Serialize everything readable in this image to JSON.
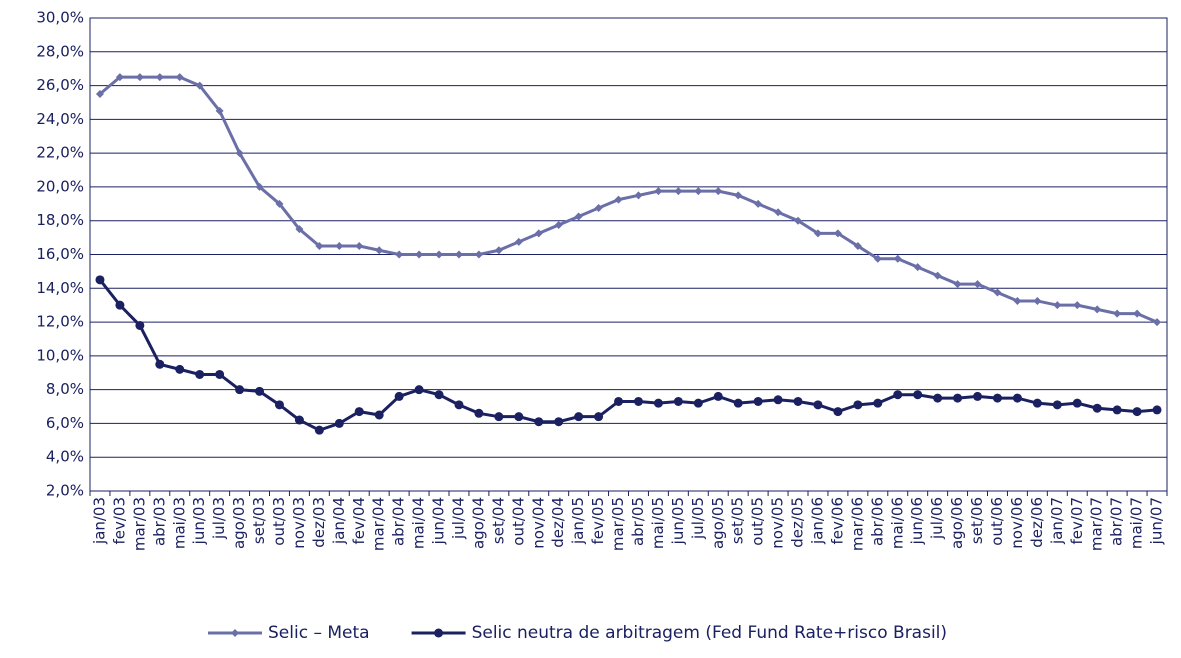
{
  "chart_data": {
    "type": "line",
    "categories": [
      "jan/03",
      "fev/03",
      "mar/03",
      "abr/03",
      "mai/03",
      "jun/03",
      "jul/03",
      "ago/03",
      "set/03",
      "out/03",
      "nov/03",
      "dez/03",
      "jan/04",
      "fev/04",
      "mar/04",
      "abr/04",
      "mai/04",
      "jun/04",
      "jul/04",
      "ago/04",
      "set/04",
      "out/04",
      "nov/04",
      "dez/04",
      "jan/05",
      "fev/05",
      "mar/05",
      "abr/05",
      "mai/05",
      "jun/05",
      "jul/05",
      "ago/05",
      "set/05",
      "out/05",
      "nov/05",
      "dez/05",
      "jan/06",
      "fev/06",
      "mar/06",
      "abr/06",
      "mai/06",
      "jun/06",
      "jul/06",
      "ago/06",
      "set/06",
      "out/06",
      "nov/06",
      "dez/06",
      "jan/07",
      "fev/07",
      "mar/07",
      "abr/07",
      "mai/07",
      "jun/07"
    ],
    "series": [
      {
        "name": "Selic – Meta",
        "color": "#6b6fa8",
        "marker": "diamond",
        "values": [
          25.5,
          26.5,
          26.5,
          26.5,
          26.5,
          26.0,
          24.5,
          22.0,
          20.0,
          19.0,
          17.5,
          16.5,
          16.5,
          16.5,
          16.25,
          16.0,
          16.0,
          16.0,
          16.0,
          16.0,
          16.25,
          16.75,
          17.25,
          17.75,
          18.25,
          18.75,
          19.25,
          19.5,
          19.75,
          19.75,
          19.75,
          19.75,
          19.5,
          19.0,
          18.5,
          18.0,
          17.25,
          17.25,
          16.5,
          15.75,
          15.75,
          15.25,
          14.75,
          14.25,
          14.25,
          13.75,
          13.25,
          13.25,
          13.0,
          13.0,
          12.75,
          12.5,
          12.5,
          12.0
        ]
      },
      {
        "name": "Selic neutra de arbitragem (Fed Fund Rate+risco Brasil)",
        "color": "#1a2060",
        "marker": "circle",
        "values": [
          14.5,
          13.0,
          11.8,
          9.5,
          9.2,
          8.9,
          8.9,
          8.0,
          7.9,
          7.1,
          6.2,
          5.6,
          6.0,
          6.7,
          6.5,
          7.6,
          8.0,
          7.7,
          7.1,
          6.6,
          6.4,
          6.4,
          6.1,
          6.1,
          6.4,
          6.4,
          7.3,
          7.3,
          7.2,
          7.3,
          7.2,
          7.6,
          7.2,
          7.3,
          7.4,
          7.3,
          7.1,
          6.7,
          7.1,
          7.2,
          7.7,
          7.7,
          7.5,
          7.5,
          7.6,
          7.5,
          7.5,
          7.2,
          7.1,
          7.2,
          6.9,
          6.8,
          6.7,
          6.8
        ]
      }
    ],
    "ylim": [
      2,
      30
    ],
    "yticks": [
      {
        "value": 2,
        "label": "2,0%"
      },
      {
        "value": 4,
        "label": "4,0%"
      },
      {
        "value": 6,
        "label": "6,0%"
      },
      {
        "value": 8,
        "label": "8,0%"
      },
      {
        "value": 10,
        "label": "10,0%"
      },
      {
        "value": 12,
        "label": "12,0%"
      },
      {
        "value": 14,
        "label": "14,0%"
      },
      {
        "value": 16,
        "label": "16,0%"
      },
      {
        "value": 18,
        "label": "18,0%"
      },
      {
        "value": 20,
        "label": "20,0%"
      },
      {
        "value": 22,
        "label": "22,0%"
      },
      {
        "value": 24,
        "label": "24,0%"
      },
      {
        "value": 26,
        "label": "26,0%"
      },
      {
        "value": 28,
        "label": "28,0%"
      },
      {
        "value": 30,
        "label": "30,0%"
      }
    ],
    "grid": true,
    "legend": "bottom"
  }
}
